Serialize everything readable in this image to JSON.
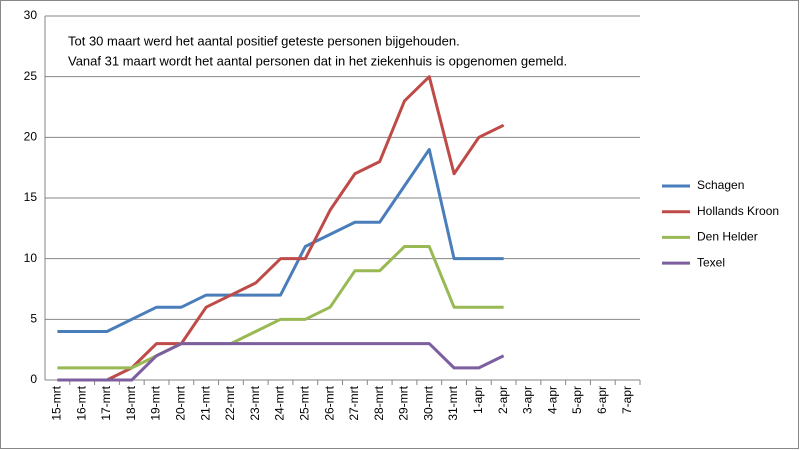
{
  "chart_data": {
    "type": "line",
    "annotations": [
      "Tot 30 maart werd het aantal positief geteste personen bijgehouden.",
      "Vanaf 31 maart wordt het aantal personen dat in het ziekenhuis is opgenomen gemeld."
    ],
    "categories": [
      "15-mrt",
      "16-mrt",
      "17-mrt",
      "18-mrt",
      "19-mrt",
      "20-mrt",
      "21-mrt",
      "22-mrt",
      "23-mrt",
      "24-mrt",
      "25-mrt",
      "26-mrt",
      "27-mrt",
      "28-mrt",
      "29-mrt",
      "30-mrt",
      "31-mrt",
      "1-apr",
      "2-apr",
      "3-apr",
      "4-apr",
      "5-apr",
      "6-apr",
      "7-apr"
    ],
    "series": [
      {
        "name": "Schagen",
        "color": "#4a7ebb",
        "values": [
          4,
          4,
          4,
          5,
          6,
          6,
          7,
          7,
          7,
          7,
          11,
          12,
          13,
          13,
          16,
          19,
          10,
          10,
          10,
          null,
          null,
          null,
          null,
          null
        ]
      },
      {
        "name": "Hollands Kroon",
        "color": "#be4b48",
        "values": [
          0,
          0,
          0,
          1,
          3,
          3,
          6,
          7,
          8,
          10,
          10,
          14,
          17,
          18,
          23,
          25,
          17,
          20,
          21,
          null,
          null,
          null,
          null,
          null
        ]
      },
      {
        "name": "Den Helder",
        "color": "#98b954",
        "values": [
          1,
          1,
          1,
          1,
          2,
          3,
          3,
          3,
          4,
          5,
          5,
          6,
          9,
          9,
          11,
          11,
          6,
          6,
          6,
          null,
          null,
          null,
          null,
          null
        ]
      },
      {
        "name": "Texel",
        "color": "#7d5fa0",
        "values": [
          0,
          0,
          0,
          0,
          2,
          3,
          3,
          3,
          3,
          3,
          3,
          3,
          3,
          3,
          3,
          3,
          1,
          1,
          2,
          null,
          null,
          null,
          null,
          null
        ]
      }
    ],
    "ylim": [
      0,
      30
    ],
    "yticks": [
      0,
      5,
      10,
      15,
      20,
      25,
      30
    ],
    "grid": true,
    "legend": "right"
  }
}
